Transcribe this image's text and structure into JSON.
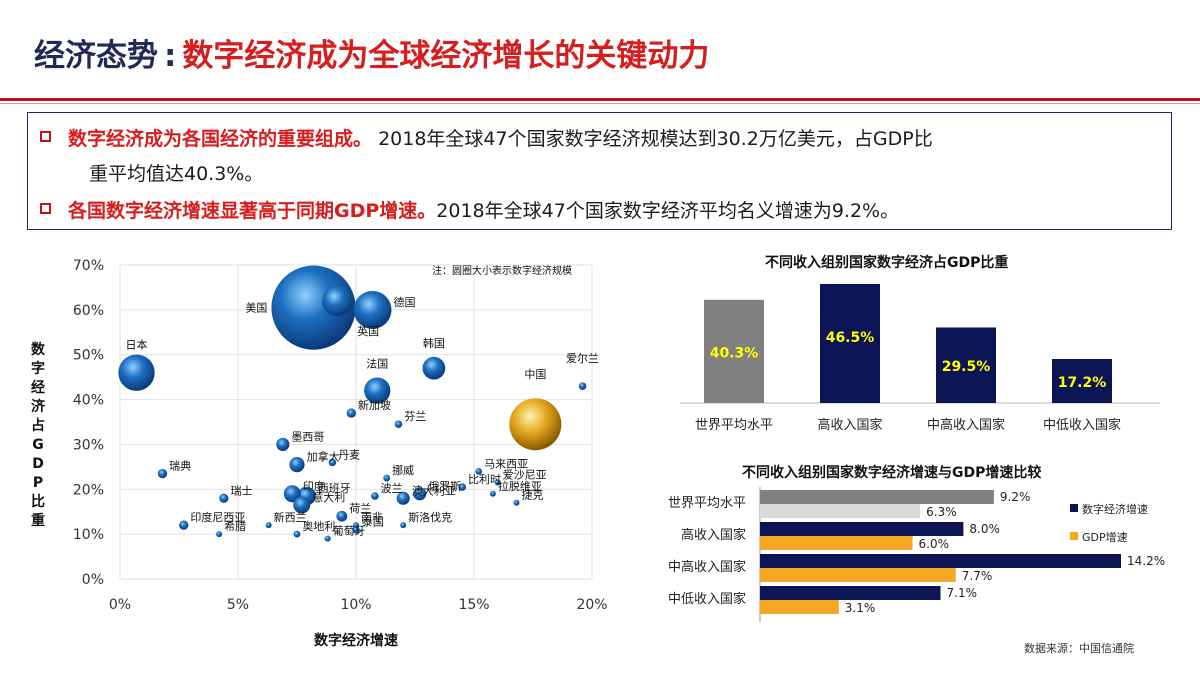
{
  "header": {
    "title_part1": "经济态势",
    "title_sep": ":",
    "title_part2": "数字经济成为全球经济增长的关键动力"
  },
  "summary": {
    "line1_highlight": "数字经济成为各国经济的重要组成。",
    "line1_text": "2018年全球47个国家数字经济规模达到30.2万亿美元，占GDP比",
    "line2_text": "重平均值达40.3%。",
    "line3_highlight": "各国数字经济增速显著高于同期GDP增速。",
    "line3_text": "2018年全球47个国家数字经济平均名义增速为9.2%。"
  },
  "source": "数据来源：中国信通院",
  "colors": {
    "accent_red": "#d71d1d",
    "navy": "#1f2a55",
    "bar_gray": "#808080",
    "bar_light_gray": "#d9d9d9",
    "bar_dark_navy": "#0b1454",
    "bar_orange": "#f5a623",
    "bubble_blue": "#1e6fc0",
    "bubble_gold": "#e3a51c",
    "label_yellow": "#ffff00"
  },
  "chart_data": [
    {
      "type": "scatter",
      "xlabel": "数字经济增速",
      "ylabel": "数字经济占GDP比重",
      "note": "注：圆圈大小表示数字经济规模",
      "xlim": [
        0,
        0.2
      ],
      "ylim": [
        0,
        0.7
      ],
      "x_ticks": [
        "0%",
        "5%",
        "10%",
        "15%",
        "20%"
      ],
      "y_ticks": [
        "0%",
        "10%",
        "20%",
        "30%",
        "40%",
        "50%",
        "60%",
        "70%"
      ],
      "points": [
        {
          "name": "美国",
          "x": 0.082,
          "y": 0.605,
          "size": 12.3,
          "color": "blue"
        },
        {
          "name": "英国",
          "x": 0.092,
          "y": 0.62,
          "size": 1.6,
          "color": "blue"
        },
        {
          "name": "德国",
          "x": 0.107,
          "y": 0.6,
          "size": 2.5,
          "color": "blue"
        },
        {
          "name": "日本",
          "x": 0.007,
          "y": 0.46,
          "size": 2.3,
          "color": "blue"
        },
        {
          "name": "韩国",
          "x": 0.133,
          "y": 0.47,
          "size": 0.9,
          "color": "blue"
        },
        {
          "name": "法国",
          "x": 0.109,
          "y": 0.42,
          "size": 1.2,
          "color": "blue"
        },
        {
          "name": "中国",
          "x": 0.176,
          "y": 0.345,
          "size": 4.7,
          "color": "gold"
        },
        {
          "name": "爱尔兰",
          "x": 0.196,
          "y": 0.43,
          "size": 0.1,
          "color": "blue"
        },
        {
          "name": "新加坡",
          "x": 0.098,
          "y": 0.37,
          "size": 0.15,
          "color": "blue"
        },
        {
          "name": "芬兰",
          "x": 0.118,
          "y": 0.345,
          "size": 0.1,
          "color": "blue"
        },
        {
          "name": "墨西哥",
          "x": 0.069,
          "y": 0.3,
          "size": 0.3,
          "color": "blue"
        },
        {
          "name": "丹麦",
          "x": 0.09,
          "y": 0.26,
          "size": 0.1,
          "color": "blue"
        },
        {
          "name": "加拿大",
          "x": 0.075,
          "y": 0.255,
          "size": 0.4,
          "color": "blue"
        },
        {
          "name": "瑞典",
          "x": 0.018,
          "y": 0.235,
          "size": 0.15,
          "color": "blue"
        },
        {
          "name": "挪威",
          "x": 0.113,
          "y": 0.225,
          "size": 0.08,
          "color": "blue"
        },
        {
          "name": "马来西亚",
          "x": 0.152,
          "y": 0.24,
          "size": 0.08,
          "color": "blue"
        },
        {
          "name": "瑞士",
          "x": 0.044,
          "y": 0.18,
          "size": 0.15,
          "color": "blue"
        },
        {
          "name": "印度",
          "x": 0.073,
          "y": 0.19,
          "size": 0.5,
          "color": "blue"
        },
        {
          "name": "俄罗斯",
          "x": 0.127,
          "y": 0.19,
          "size": 0.3,
          "color": "blue"
        },
        {
          "name": "比利时",
          "x": 0.145,
          "y": 0.205,
          "size": 0.1,
          "color": "blue"
        },
        {
          "name": "爱沙尼亚",
          "x": 0.16,
          "y": 0.215,
          "size": 0.02,
          "color": "blue"
        },
        {
          "name": "西班牙",
          "x": 0.079,
          "y": 0.185,
          "size": 0.6,
          "color": "blue"
        },
        {
          "name": "波兰",
          "x": 0.108,
          "y": 0.185,
          "size": 0.1,
          "color": "blue"
        },
        {
          "name": "印度尼西亚",
          "x": 0.027,
          "y": 0.12,
          "size": 0.15,
          "color": "blue"
        },
        {
          "name": "意大利",
          "x": 0.077,
          "y": 0.165,
          "size": 0.5,
          "color": "blue"
        },
        {
          "name": "荷兰",
          "x": 0.094,
          "y": 0.14,
          "size": 0.2,
          "color": "blue"
        },
        {
          "name": "南非",
          "x": 0.1,
          "y": 0.12,
          "size": 0.05,
          "color": "blue"
        },
        {
          "name": "澳大利亚",
          "x": 0.12,
          "y": 0.18,
          "size": 0.3,
          "color": "blue"
        },
        {
          "name": "拉脱维亚",
          "x": 0.158,
          "y": 0.19,
          "size": 0.02,
          "color": "blue"
        },
        {
          "name": "捷克",
          "x": 0.168,
          "y": 0.17,
          "size": 0.05,
          "color": "blue"
        },
        {
          "name": "希腊",
          "x": 0.042,
          "y": 0.1,
          "size": 0.03,
          "color": "blue"
        },
        {
          "name": "新西兰",
          "x": 0.063,
          "y": 0.12,
          "size": 0.03,
          "color": "blue"
        },
        {
          "name": "奥地利",
          "x": 0.075,
          "y": 0.1,
          "size": 0.08,
          "color": "blue"
        },
        {
          "name": "葡萄牙",
          "x": 0.088,
          "y": 0.09,
          "size": 0.05,
          "color": "blue"
        },
        {
          "name": "泰国",
          "x": 0.1,
          "y": 0.11,
          "size": 0.1,
          "color": "blue"
        },
        {
          "name": "斯洛伐克",
          "x": 0.12,
          "y": 0.12,
          "size": 0.03,
          "color": "blue"
        }
      ]
    },
    {
      "type": "bar",
      "title": "不同收入组别国家数字经济占GDP比重",
      "categories": [
        "世界平均水平",
        "高收入国家",
        "中高收入国家",
        "中低收入国家"
      ],
      "values": [
        40.3,
        46.5,
        29.5,
        17.2
      ],
      "value_labels": [
        "40.3%",
        "46.5%",
        "29.5%",
        "17.2%"
      ],
      "ylim": [
        0,
        50
      ]
    },
    {
      "type": "bar",
      "orientation": "horizontal",
      "title": "不同收入组别国家数字经济增速与GDP增速比较",
      "categories": [
        "世界平均水平",
        "高收入国家",
        "中高收入国家",
        "中低收入国家"
      ],
      "series": [
        {
          "name": "数字经济增速",
          "values": [
            9.2,
            8.0,
            14.2,
            7.1
          ],
          "labels": [
            "9.2%",
            "8.0%",
            "14.2%",
            "7.1%"
          ]
        },
        {
          "name": "GDP增速",
          "values": [
            6.3,
            6.0,
            7.7,
            3.1
          ],
          "labels": [
            "6.3%",
            "6.0%",
            "7.7%",
            "3.1%"
          ]
        }
      ],
      "xlim": [
        0,
        15
      ],
      "legend": "right"
    }
  ]
}
